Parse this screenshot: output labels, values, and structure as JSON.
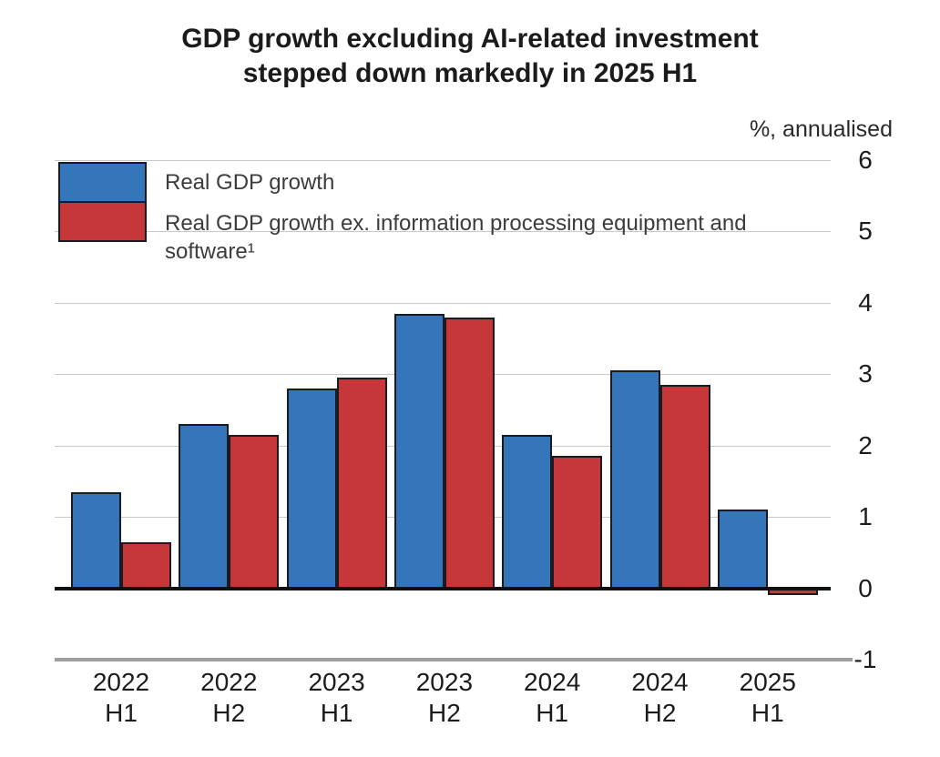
{
  "chart_data": {
    "type": "bar",
    "title": "GDP growth excluding AI-related investment stepped down markedly in 2025 H1",
    "title_lines": [
      "GDP growth excluding AI-related investment",
      "stepped down markedly in 2025 H1"
    ],
    "unit_label": "%, annualised",
    "categories": [
      "2022 H1",
      "2022 H2",
      "2023 H1",
      "2023 H2",
      "2024 H1",
      "2024 H2",
      "2025 H1"
    ],
    "category_lines": [
      [
        "2022",
        "H1"
      ],
      [
        "2022",
        "H2"
      ],
      [
        "2023",
        "H1"
      ],
      [
        "2023",
        "H2"
      ],
      [
        "2024",
        "H1"
      ],
      [
        "2024",
        "H2"
      ],
      [
        "2025",
        "H1"
      ]
    ],
    "series": [
      {
        "name": "Real GDP growth",
        "color": "#3476b9",
        "values": [
          1.35,
          2.3,
          2.8,
          3.85,
          2.15,
          3.05,
          1.1
        ]
      },
      {
        "name": "Real GDP growth ex. information processing equipment and software¹",
        "color": "#c53738",
        "values": [
          0.65,
          2.15,
          2.95,
          3.8,
          1.85,
          2.85,
          -0.1
        ]
      }
    ],
    "ylabel": "",
    "xlabel": "",
    "ylim": [
      -1,
      6
    ],
    "yticks": [
      6,
      5,
      4,
      3,
      2,
      1,
      0,
      -1
    ],
    "grid": true,
    "legend_position": "top-left"
  },
  "colors": {
    "bar_blue": "#3476b9",
    "bar_red": "#c53738",
    "bar_border": "#1a1a22",
    "gridline": "#c9c9c9",
    "zero_line": "#101010",
    "baseline": "#9e9e9e",
    "text": "#1c1c1c"
  }
}
